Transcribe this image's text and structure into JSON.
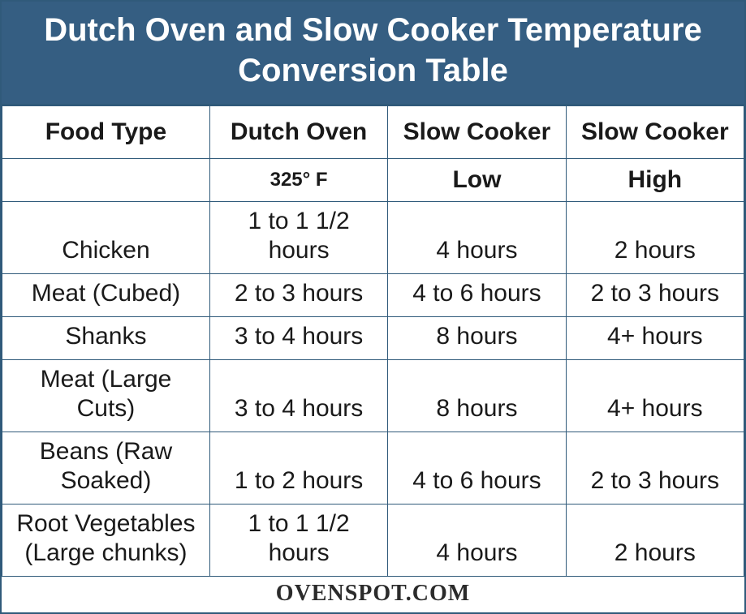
{
  "title": "Dutch Oven and Slow Cooker Temperature Conversion Table",
  "colors": {
    "header_bg": "#355e82",
    "header_text": "#ffffff",
    "border": "#305a7a",
    "cell_text": "#1a1a1a",
    "background": "#ffffff"
  },
  "typography": {
    "title_fontsize": 40,
    "header_fontsize": 30,
    "cell_fontsize": 30,
    "temp_fontsize": 24,
    "footer_fontsize": 28,
    "title_weight": 700,
    "header_weight": 700
  },
  "layout": {
    "column_widths_pct": [
      28,
      24,
      24,
      24
    ]
  },
  "table": {
    "type": "table",
    "columns": [
      "Food Type",
      "Dutch Oven",
      "Slow Cooker",
      "Slow Cooker"
    ],
    "subheader": [
      "",
      "325° F",
      "Low",
      "High"
    ],
    "rows": [
      [
        "Chicken",
        "1 to 1 1/2 hours",
        "4 hours",
        "2 hours"
      ],
      [
        "Meat (Cubed)",
        "2 to 3 hours",
        "4 to 6 hours",
        "2 to 3 hours"
      ],
      [
        "Shanks",
        "3 to 4 hours",
        "8 hours",
        "4+ hours"
      ],
      [
        "Meat (Large Cuts)",
        "3 to 4 hours",
        "8 hours",
        "4+ hours"
      ],
      [
        "Beans (Raw Soaked)",
        "1 to 2 hours",
        "4 to 6 hours",
        "2 to 3 hours"
      ],
      [
        "Root Vegetables (Large chunks)",
        "1 to 1 1/2 hours",
        "4 hours",
        "2 hours"
      ]
    ]
  },
  "footer": "OVENSPOT.COM"
}
